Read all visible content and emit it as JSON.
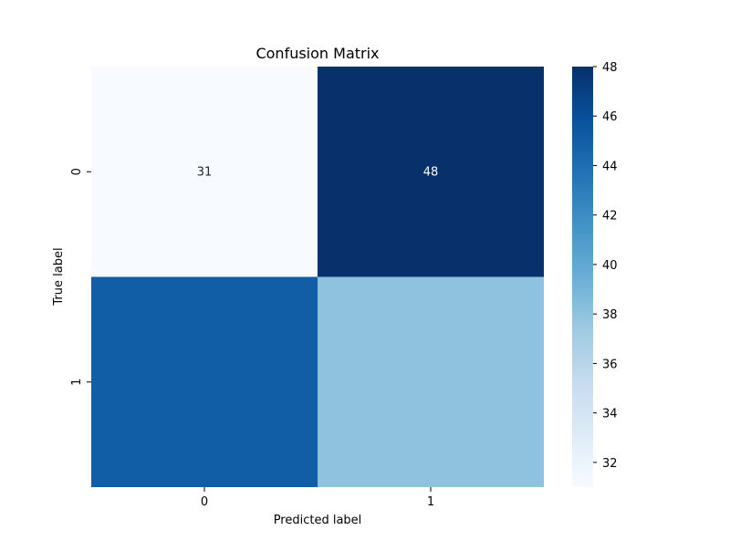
{
  "chart_data": {
    "type": "heatmap",
    "title": "Confusion Matrix",
    "xlabel": "Predicted label",
    "ylabel": "True label",
    "x_categories": [
      "0",
      "1"
    ],
    "y_categories": [
      "0",
      "1"
    ],
    "values": [
      [
        31,
        48
      ],
      [
        45,
        38
      ]
    ],
    "cell_labels": [
      [
        "31",
        "48"
      ],
      [
        "",
        ""
      ]
    ],
    "colormap": "Blues",
    "colorbar": {
      "min": 31,
      "max": 48,
      "ticks": [
        32,
        34,
        36,
        38,
        40,
        42,
        44,
        46,
        48
      ]
    }
  }
}
